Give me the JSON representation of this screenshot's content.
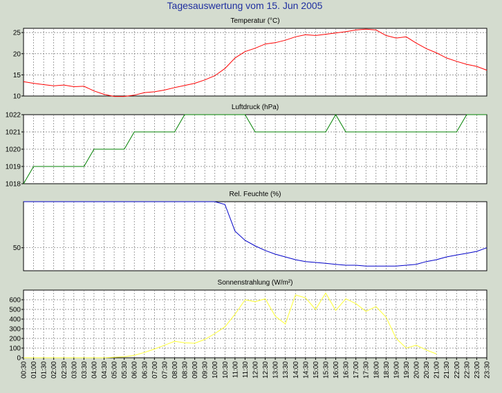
{
  "title": "Tagesauswertung vom 15. Jun 2005",
  "colors": {
    "background": "#d4dccf",
    "plot_background": "#ffffff",
    "title": "#1f2fa0",
    "grid": "#777777",
    "temperature": "#ff0000",
    "pressure": "#008000",
    "humidity": "#0000c8",
    "radiation": "#ffff33"
  },
  "x_ticks": [
    "00:30",
    "01:00",
    "01:30",
    "02:00",
    "02:30",
    "03:00",
    "03:30",
    "04:00",
    "04:30",
    "05:00",
    "05:30",
    "06:00",
    "06:30",
    "07:00",
    "07:30",
    "08:00",
    "08:30",
    "09:00",
    "09:30",
    "10:00",
    "10:30",
    "11:00",
    "11:30",
    "12:00",
    "12:30",
    "13:00",
    "13:30",
    "14:00",
    "14:30",
    "15:00",
    "15:30",
    "16:00",
    "16:30",
    "17:00",
    "17:30",
    "18:00",
    "18:30",
    "19:00",
    "19:30",
    "20:00",
    "20:30",
    "21:00",
    "21:30",
    "22:00",
    "22:30",
    "23:00",
    "23:30"
  ],
  "chart_data": [
    {
      "type": "line",
      "title": "Temperatur (°C)",
      "ylim": [
        10,
        26
      ],
      "yticks": [
        10,
        15,
        20,
        25
      ],
      "grid": true,
      "x": [
        "00:30",
        "01:00",
        "01:30",
        "02:00",
        "02:30",
        "03:00",
        "03:30",
        "04:00",
        "04:30",
        "05:00",
        "05:30",
        "06:00",
        "06:30",
        "07:00",
        "07:30",
        "08:00",
        "08:30",
        "09:00",
        "09:30",
        "10:00",
        "10:30",
        "11:00",
        "11:30",
        "12:00",
        "12:30",
        "13:00",
        "13:30",
        "14:00",
        "14:30",
        "15:00",
        "15:30",
        "16:00",
        "16:30",
        "17:00",
        "17:30",
        "18:00",
        "18:30",
        "19:00",
        "19:30",
        "20:00",
        "20:30",
        "21:00",
        "21:30",
        "22:00",
        "22:30",
        "23:00",
        "23:30"
      ],
      "series": [
        {
          "color": "#ff0000",
          "values": [
            13.4,
            13.0,
            12.7,
            12.4,
            12.6,
            12.2,
            12.3,
            11.2,
            10.4,
            9.9,
            9.9,
            10.2,
            10.8,
            11.0,
            11.4,
            12.0,
            12.5,
            13.0,
            13.8,
            14.8,
            16.5,
            19.0,
            20.5,
            21.3,
            22.3,
            22.6,
            23.2,
            24.0,
            24.5,
            24.3,
            24.6,
            24.9,
            25.2,
            25.6,
            25.8,
            25.6,
            24.3,
            23.7,
            24.0,
            22.5,
            21.2,
            20.2,
            19.0,
            18.2,
            17.5,
            17.0,
            16.1
          ]
        }
      ]
    },
    {
      "type": "line",
      "title": "Luftdruck (hPa)",
      "ylim": [
        1018,
        1022
      ],
      "yticks": [
        1018,
        1019,
        1020,
        1021,
        1022
      ],
      "grid": true,
      "x": [
        "00:30",
        "01:00",
        "01:30",
        "02:00",
        "02:30",
        "03:00",
        "03:30",
        "04:00",
        "04:30",
        "05:00",
        "05:30",
        "06:00",
        "06:30",
        "07:00",
        "07:30",
        "08:00",
        "08:30",
        "09:00",
        "09:30",
        "10:00",
        "10:30",
        "11:00",
        "11:30",
        "12:00",
        "12:30",
        "13:00",
        "13:30",
        "14:00",
        "14:30",
        "15:00",
        "15:30",
        "16:00",
        "16:30",
        "17:00",
        "17:30",
        "18:00",
        "18:30",
        "19:00",
        "19:30",
        "20:00",
        "20:30",
        "21:00",
        "21:30",
        "22:00",
        "22:30",
        "23:00",
        "23:30"
      ],
      "series": [
        {
          "color": "#008000",
          "values": [
            1018,
            1019,
            1019,
            1019,
            1019,
            1019,
            1019,
            1020,
            1020,
            1020,
            1020,
            1021,
            1021,
            1021,
            1021,
            1021,
            1022,
            1022,
            1022,
            1022,
            1022,
            1022,
            1022,
            1021,
            1021,
            1021,
            1021,
            1021,
            1021,
            1021,
            1021,
            1022,
            1021,
            1021,
            1021,
            1021,
            1021,
            1021,
            1021,
            1021,
            1021,
            1021,
            1021,
            1021,
            1022,
            1022,
            1022
          ]
        }
      ]
    },
    {
      "type": "line",
      "title": "Rel. Feuchte (%)",
      "ylim": [
        25,
        100
      ],
      "yticks": [
        50
      ],
      "grid": true,
      "x": [
        "00:30",
        "01:00",
        "01:30",
        "02:00",
        "02:30",
        "03:00",
        "03:30",
        "04:00",
        "04:30",
        "05:00",
        "05:30",
        "06:00",
        "06:30",
        "07:00",
        "07:30",
        "08:00",
        "08:30",
        "09:00",
        "09:30",
        "10:00",
        "10:30",
        "11:00",
        "11:30",
        "12:00",
        "12:30",
        "13:00",
        "13:30",
        "14:00",
        "14:30",
        "15:00",
        "15:30",
        "16:00",
        "16:30",
        "17:00",
        "17:30",
        "18:00",
        "18:30",
        "19:00",
        "19:30",
        "20:00",
        "20:30",
        "21:00",
        "21:30",
        "22:00",
        "22:30",
        "23:00",
        "23:30"
      ],
      "series": [
        {
          "color": "#0000c8",
          "values": [
            100,
            100,
            100,
            100,
            100,
            100,
            100,
            100,
            100,
            100,
            100,
            100,
            100,
            100,
            100,
            100,
            100,
            100,
            100,
            100,
            97,
            68,
            58,
            52,
            47,
            43,
            40,
            37,
            35,
            34,
            33,
            32,
            31,
            31,
            30,
            30,
            30,
            30,
            31,
            32,
            35,
            37,
            40,
            42,
            44,
            46,
            50
          ]
        }
      ]
    },
    {
      "type": "line",
      "title": "Sonnenstrahlung (W/m²)",
      "ylim": [
        0,
        700
      ],
      "yticks": [
        0,
        100,
        200,
        300,
        400,
        500,
        600
      ],
      "grid": true,
      "x": [
        "00:30",
        "01:00",
        "01:30",
        "02:00",
        "02:30",
        "03:00",
        "03:30",
        "04:00",
        "04:30",
        "05:00",
        "05:30",
        "06:00",
        "06:30",
        "07:00",
        "07:30",
        "08:00",
        "08:30",
        "09:00",
        "09:30",
        "10:00",
        "10:30",
        "11:00",
        "11:30",
        "12:00",
        "12:30",
        "13:00",
        "13:30",
        "14:00",
        "14:30",
        "15:00",
        "15:30",
        "16:00",
        "16:30",
        "17:00",
        "17:30",
        "18:00",
        "18:30",
        "19:00",
        "19:30",
        "20:00",
        "20:30",
        "21:00"
      ],
      "series": [
        {
          "color": "#ffff33",
          "values": [
            0,
            0,
            0,
            0,
            0,
            0,
            0,
            0,
            0,
            5,
            10,
            25,
            55,
            90,
            130,
            170,
            155,
            150,
            190,
            250,
            320,
            450,
            600,
            580,
            610,
            430,
            350,
            650,
            620,
            500,
            670,
            490,
            610,
            560,
            480,
            530,
            420,
            200,
            100,
            130,
            80,
            40
          ]
        }
      ]
    }
  ]
}
